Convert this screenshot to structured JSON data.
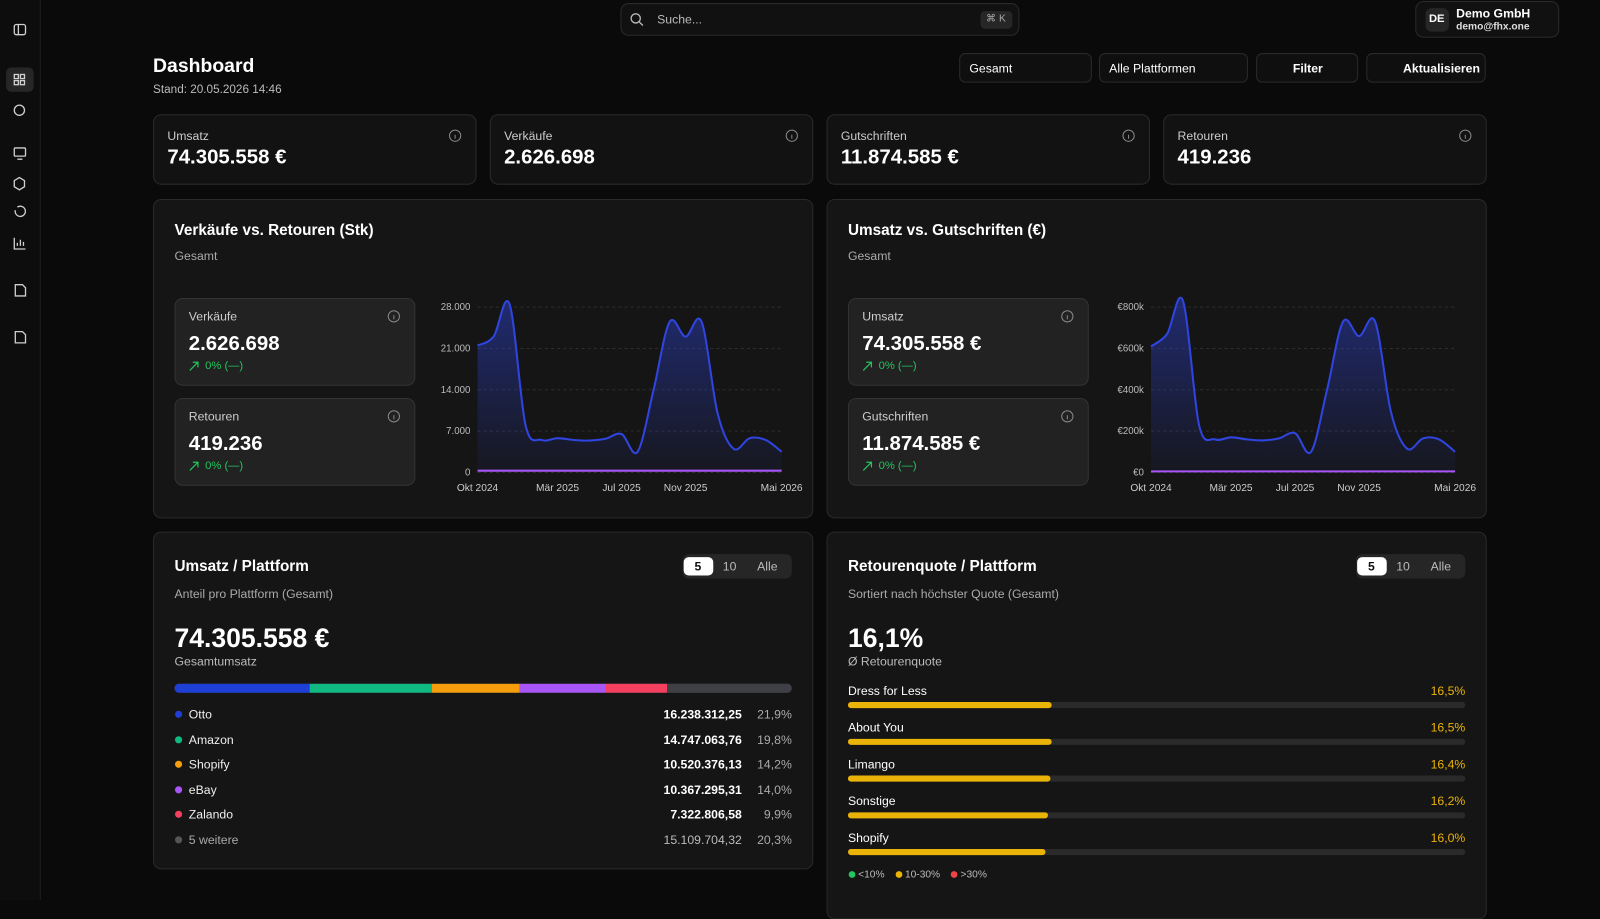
{
  "search": {
    "placeholder": "Suche...",
    "shortcut": "⌘ K"
  },
  "user": {
    "initials": "DE",
    "name": "Demo GmbH",
    "email": "demo@fhx.one"
  },
  "header": {
    "title": "Dashboard",
    "timestamp": "Stand: 20.05.2026 14:46"
  },
  "controls": {
    "period": "Gesamt",
    "platforms": "Alle Plattformen",
    "filter": "Filter",
    "refresh": "Aktualisieren"
  },
  "kpis": [
    {
      "label": "Umsatz",
      "value": "74.305.558 €"
    },
    {
      "label": "Verkäufe",
      "value": "2.626.698"
    },
    {
      "label": "Gutschriften",
      "value": "11.874.585 €"
    },
    {
      "label": "Retouren",
      "value": "419.236"
    }
  ],
  "chart_data": [
    {
      "type": "area",
      "title": "Verkäufe vs. Retouren (Stk)",
      "subtitle": "Gesamt",
      "categories": [
        "Okt 2024",
        null,
        null,
        null,
        null,
        "Mär 2025",
        null,
        null,
        null,
        "Jul 2025",
        null,
        null,
        null,
        "Nov 2025",
        null,
        null,
        null,
        null,
        null,
        "Mai 2026"
      ],
      "series": [
        {
          "name": "Verkäufe",
          "color": "#2f45e0",
          "total": "2.626.698",
          "change": "0% (—)",
          "values": [
            21500,
            23000,
            28500,
            8000,
            5500,
            5800,
            5500,
            5400,
            5700,
            6500,
            3500,
            14000,
            25500,
            23000,
            25500,
            10000,
            4000,
            5800,
            5500,
            3500
          ]
        },
        {
          "name": "Retouren",
          "color": "#a855f7",
          "total": "419.236",
          "change": "0% (—)",
          "values": [
            300,
            300,
            300,
            300,
            300,
            300,
            300,
            300,
            300,
            300,
            300,
            300,
            300,
            300,
            300,
            300,
            300,
            300,
            300,
            300
          ]
        }
      ],
      "ylim": [
        0,
        28000
      ],
      "yticks": [
        0,
        {
          "value": 7000,
          "label": "7.000"
        },
        {
          "value": 14000,
          "label": "14.000"
        },
        {
          "value": 21000,
          "label": "21.000"
        },
        {
          "value": 28000,
          "label": "28.000"
        }
      ],
      "grid": true
    },
    {
      "type": "area",
      "title": "Umsatz vs. Gutschriften (€)",
      "subtitle": "Gesamt",
      "categories": [
        "Okt 2024",
        null,
        null,
        null,
        null,
        "Mär 2025",
        null,
        null,
        null,
        "Jul 2025",
        null,
        null,
        null,
        "Nov 2025",
        null,
        null,
        null,
        null,
        null,
        "Mai 2026"
      ],
      "series": [
        {
          "name": "Umsatz",
          "color": "#2f45e0",
          "total": "74.305.558 €",
          "change": "0% (—)",
          "values": [
            610000,
            670000,
            830000,
            230000,
            160000,
            170000,
            160000,
            155000,
            165000,
            190000,
            100000,
            400000,
            730000,
            660000,
            730000,
            290000,
            115000,
            165000,
            160000,
            100000
          ]
        },
        {
          "name": "Gutschriften",
          "color": "#a855f7",
          "total": "11.874.585 €",
          "change": "0% (—)",
          "values": [
            5000,
            5000,
            5000,
            5000,
            5000,
            5000,
            5000,
            5000,
            5000,
            5000,
            5000,
            5000,
            5000,
            5000,
            5000,
            5000,
            5000,
            5000,
            5000,
            5000
          ]
        }
      ],
      "ylim": [
        0,
        800000
      ],
      "yticks": [
        {
          "value": 0,
          "label": "€0"
        },
        {
          "value": 200000,
          "label": "€200k"
        },
        {
          "value": 400000,
          "label": "€400k"
        },
        {
          "value": 600000,
          "label": "€600k"
        },
        {
          "value": 800000,
          "label": "€800k"
        }
      ],
      "grid": true
    },
    {
      "type": "share_bar",
      "title": "Umsatz / Plattform",
      "page_sizes": [
        "5",
        "10",
        "Alle"
      ],
      "subtitle": "Anteil pro Plattform (Gesamt)",
      "total": "74.305.558 €",
      "total_label": "Gesamtumsatz",
      "xlim": [
        0,
        100
      ],
      "series": [
        {
          "name": "Otto",
          "color": "#1d3fd6",
          "amount": "16.238.312,25",
          "value": 21.9,
          "value_label": "21,9%"
        },
        {
          "name": "Amazon",
          "color": "#10b981",
          "amount": "14.747.063,76",
          "value": 19.8,
          "value_label": "19,8%"
        },
        {
          "name": "Shopify",
          "color": "#f59e0b",
          "amount": "10.520.376,13",
          "value": 14.2,
          "value_label": "14,2%"
        },
        {
          "name": "eBay",
          "color": "#a855f7",
          "amount": "10.367.295,31",
          "value": 14.0,
          "value_label": "14,0%"
        },
        {
          "name": "Zalando",
          "color": "#f43f5e",
          "amount": "7.322.806,58",
          "value": 9.9,
          "value_label": "9,9%"
        },
        {
          "name": "5 weitere",
          "color": "#3f3f46",
          "amount": "15.109.704,32",
          "value": 20.3,
          "value_label": "20,3%"
        }
      ]
    },
    {
      "type": "hbar",
      "title": "Retourenquote / Plattform",
      "page_sizes": [
        "5",
        "10",
        "Alle"
      ],
      "subtitle": "Sortiert nach höchster Quote (Gesamt)",
      "total": "16,1%",
      "total_label": "Ø Retourenquote",
      "xlim": [
        0,
        50
      ],
      "color": "#eab308",
      "categories": [
        "Dress for Less",
        "About You",
        "Limango",
        "Sonstige",
        "Shopify"
      ],
      "values": [
        16.5,
        16.5,
        16.4,
        16.2,
        16.0
      ],
      "value_labels": [
        "16,5%",
        "16,5%",
        "16,4%",
        "16,2%",
        "16,0%"
      ],
      "legend": [
        {
          "label": "<10%",
          "color": "#22c55e"
        },
        {
          "label": "10-30%",
          "color": "#eab308"
        },
        {
          "label": ">30%",
          "color": "#ef4444"
        }
      ]
    }
  ]
}
